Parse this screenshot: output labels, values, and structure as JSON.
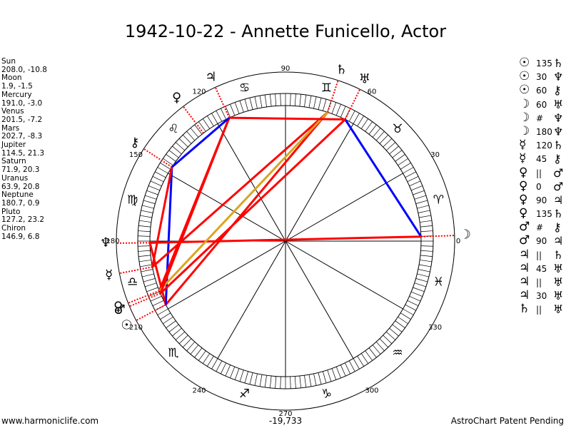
{
  "title": "1942-10-22 - Annette Funicello, Actor",
  "planets": [
    {
      "name": "Sun",
      "coords": "208.0, -10.8"
    },
    {
      "name": "Moon",
      "coords": "1.9, -1.5"
    },
    {
      "name": "Mercury",
      "coords": "191.0, -3.0"
    },
    {
      "name": "Venus",
      "coords": "201.5, -7.2"
    },
    {
      "name": "Mars",
      "coords": "202.7, -8.3"
    },
    {
      "name": "Jupiter",
      "coords": "114.5, 21.3"
    },
    {
      "name": "Saturn",
      "coords": "71.9, 20.3"
    },
    {
      "name": "Uranus",
      "coords": "63.9, 20.8"
    },
    {
      "name": "Neptune",
      "coords": "180.7, 0.9"
    },
    {
      "name": "Pluto",
      "coords": "127.2, 23.2"
    },
    {
      "name": "Chiron",
      "coords": "146.9, 6.8"
    }
  ],
  "aspects": [
    {
      "p1": "☉",
      "value": "135",
      "p2": "♄"
    },
    {
      "p1": "☉",
      "value": "30",
      "p2": "♆"
    },
    {
      "p1": "☉",
      "value": "60",
      "p2": "⚷"
    },
    {
      "p1": "☽",
      "value": "60",
      "p2": "♅"
    },
    {
      "p1": "☽",
      "value": "#",
      "p2": "♆"
    },
    {
      "p1": "☽",
      "value": "180",
      "p2": "♆"
    },
    {
      "p1": "☿",
      "value": "120",
      "p2": "♄"
    },
    {
      "p1": "☿",
      "value": "45",
      "p2": "⚷"
    },
    {
      "p1": "♀",
      "value": "||",
      "p2": "♂"
    },
    {
      "p1": "♀",
      "value": "0",
      "p2": "♂"
    },
    {
      "p1": "♀",
      "value": "90",
      "p2": "♃"
    },
    {
      "p1": "♀",
      "value": "135",
      "p2": "♄"
    },
    {
      "p1": "♂",
      "value": "#",
      "p2": "⚷"
    },
    {
      "p1": "♂",
      "value": "90",
      "p2": "♃"
    },
    {
      "p1": "♃",
      "value": "||",
      "p2": "♄"
    },
    {
      "p1": "♃",
      "value": "45",
      "p2": "♅"
    },
    {
      "p1": "♃",
      "value": "||",
      "p2": "♅"
    },
    {
      "p1": "♃",
      "value": "30",
      "p2": "♅"
    },
    {
      "p1": "♄",
      "value": "||",
      "p2": "♅"
    }
  ],
  "wheel": {
    "degree_labels": [
      "0",
      "30",
      "60",
      "90",
      "120",
      "150",
      "180",
      "210",
      "240",
      "270",
      "300",
      "330"
    ],
    "zodiac_signs": [
      "♈",
      "♉",
      "♊",
      "♋",
      "♌",
      "♍",
      "♎",
      "♏",
      "♐",
      "♑",
      "♒",
      "♓"
    ],
    "sign_start_deg": [
      15,
      45,
      75,
      105,
      135,
      165,
      195,
      225,
      255,
      285,
      315,
      345
    ],
    "planet_glyphs": [
      {
        "glyph": "☉",
        "name": "Sun",
        "deg": 208.0
      },
      {
        "glyph": "☽",
        "name": "Moon",
        "deg": 1.9
      },
      {
        "glyph": "☿",
        "name": "Mercury",
        "deg": 191.0
      },
      {
        "glyph": "♀",
        "name": "Venus",
        "deg": 201.5
      },
      {
        "glyph": "♂",
        "name": "Mars",
        "deg": 202.7
      },
      {
        "glyph": "♃",
        "name": "Jupiter",
        "deg": 114.5
      },
      {
        "glyph": "♄",
        "name": "Saturn",
        "deg": 71.9
      },
      {
        "glyph": "♅",
        "name": "Uranus",
        "deg": 63.9
      },
      {
        "glyph": "♆",
        "name": "Neptune",
        "deg": 180.7
      },
      {
        "glyph": "♀",
        "name": "Pluto",
        "deg": 127.2
      },
      {
        "glyph": "⚷",
        "name": "Chiron",
        "deg": 146.9
      }
    ],
    "aspect_lines": [
      {
        "from": 208.0,
        "to": 71.9,
        "color": "#ff0000"
      },
      {
        "from": 208.0,
        "to": 180.7,
        "color": "#ff0000"
      },
      {
        "from": 208.0,
        "to": 146.9,
        "color": "#0000ff"
      },
      {
        "from": 1.9,
        "to": 63.9,
        "color": "#0000ff"
      },
      {
        "from": 1.9,
        "to": 180.7,
        "color": "#ff0000"
      },
      {
        "from": 191.0,
        "to": 71.9,
        "color": "#ff0000"
      },
      {
        "from": 191.0,
        "to": 146.9,
        "color": "#ff0000"
      },
      {
        "from": 201.5,
        "to": 114.5,
        "color": "#ff0000"
      },
      {
        "from": 201.5,
        "to": 71.9,
        "color": "#daa520"
      },
      {
        "from": 202.7,
        "to": 114.5,
        "color": "#ff0000"
      },
      {
        "from": 114.5,
        "to": 63.9,
        "color": "#ff0000"
      },
      {
        "from": 114.5,
        "to": 146.9,
        "color": "#0000ff"
      },
      {
        "from": 202.7,
        "to": 63.9,
        "color": "#ff0000"
      }
    ]
  },
  "footer": {
    "left": "www.harmoniclife.com",
    "center": "-19,733",
    "right": "AstroChart Patent Pending"
  }
}
